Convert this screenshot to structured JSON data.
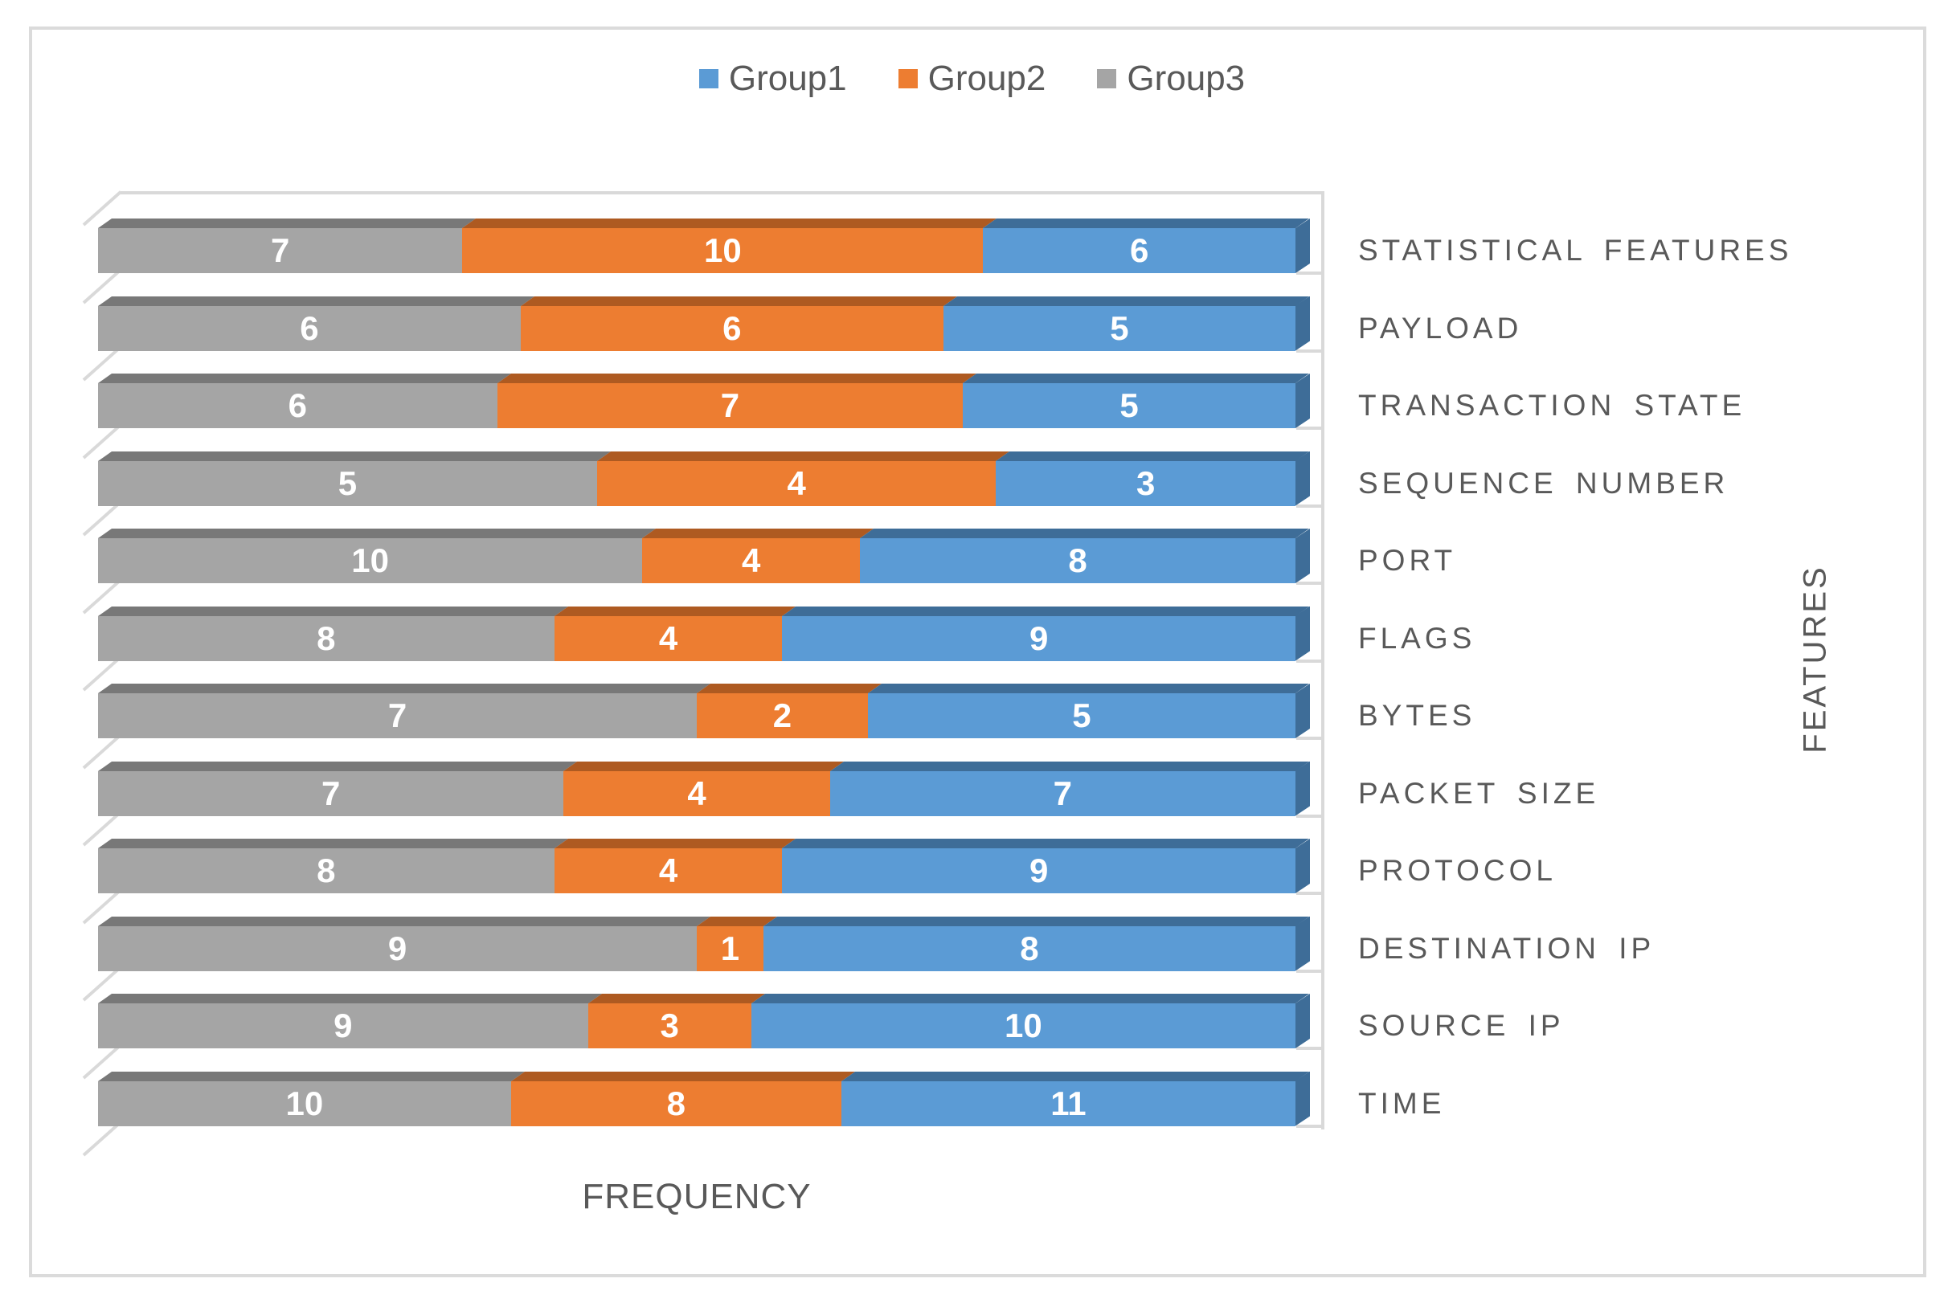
{
  "legend": {
    "items": [
      {
        "label": "Group1",
        "color": "#5B9BD5"
      },
      {
        "label": "Group2",
        "color": "#ED7D31"
      },
      {
        "label": "Group3",
        "color": "#A5A5A5"
      }
    ]
  },
  "axes": {
    "x_title": "FREQUENCY",
    "y_title": "FEATURES"
  },
  "chart_data": {
    "type": "bar",
    "orientation": "horizontal",
    "stacking": "percent",
    "style": "3d",
    "legend_position": "top",
    "data_labels": true,
    "title": "",
    "xlabel": "FREQUENCY",
    "ylabel": "FEATURES",
    "categories": [
      "STATISTICAL FEATURES",
      "PAYLOAD",
      "TRANSACTION STATE",
      "SEQUENCE NUMBER",
      "PORT",
      "FLAGS",
      "BYTES",
      "PACKET SIZE",
      "PROTOCOL",
      "DESTINATION IP",
      "SOURCE IP",
      "TIME"
    ],
    "series": [
      {
        "name": "Group1",
        "color": "#5B9BD5",
        "dark_color": "#3E6D98",
        "values": [
          6,
          5,
          5,
          3,
          8,
          9,
          5,
          7,
          9,
          8,
          10,
          11
        ]
      },
      {
        "name": "Group2",
        "color": "#ED7D31",
        "dark_color": "#AE5A21",
        "values": [
          10,
          6,
          7,
          4,
          4,
          4,
          2,
          4,
          4,
          1,
          3,
          8
        ]
      },
      {
        "name": "Group3",
        "color": "#A5A5A5",
        "dark_color": "#787878",
        "values": [
          7,
          6,
          6,
          5,
          10,
          8,
          7,
          7,
          8,
          9,
          9,
          10
        ]
      }
    ],
    "bar_segment_order": [
      "Group3",
      "Group2",
      "Group1"
    ]
  },
  "colors": {
    "axis_text": "#595959",
    "grid_line": "#D9D9D9",
    "data_label_text": "#FFFFFF",
    "background": "#FFFFFF",
    "frame_border": "#DBDBDB"
  }
}
